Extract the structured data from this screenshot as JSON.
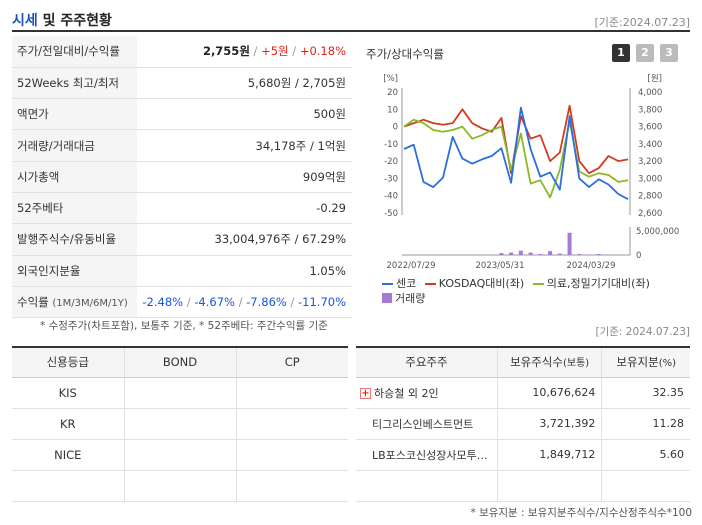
{
  "header": {
    "title_main": "시세",
    "title_rest": " 및 주주현황",
    "date": "[기준:2024.07.23]"
  },
  "quote": {
    "price_label": "주가/전일대비/수익률",
    "price": "2,755원",
    "change": "+5원",
    "change_pct": "+0.18%",
    "w52_label": "52Weeks 최고/최저",
    "w52_high": "5,680원",
    "w52_low": "2,705원",
    "par_label": "액면가",
    "par": "500원",
    "volume_label": "거래량/거래대금",
    "volume": "34,178주",
    "amount": "1억원",
    "mcap_label": "시가총액",
    "mcap": "909억원",
    "beta_label": "52주베타",
    "beta": "-0.29",
    "shares_label": "발행주식수/유동비율",
    "shares": "33,004,976주",
    "float": "67.29%",
    "foreign_label": "외국인지분율",
    "foreign": "1.05%",
    "return_label": "수익률",
    "return_period": "(1M/3M/6M/1Y)",
    "returns": [
      "-2.48%",
      "-4.67%",
      "-7.86%",
      "-11.70%"
    ],
    "sep": " / "
  },
  "note_left": "* 수정주가(차트포함), 보통주 기준, * 52주베타: 주간수익률 기준",
  "note_right_date": "[기준: 2024.07.23]",
  "chart": {
    "title": "주가/상대수익률",
    "pages": [
      "1",
      "2",
      "3"
    ],
    "active_page": "1",
    "colors": {
      "price": "#2a6fdb",
      "kosdaq": "#d23b1e",
      "sector": "#8ab928",
      "volume": "#a77ad3",
      "active_btn": "#333333",
      "inactive_btn": "#bbbbbb"
    }
  },
  "chart_data": {
    "type": "line",
    "left_axis_unit": "[%]",
    "right_axis_unit": "[원]",
    "left_ticks": [
      "20",
      "10",
      "0",
      "-10",
      "-20",
      "-30",
      "-40",
      "-50"
    ],
    "right_ticks": [
      "4,000",
      "3,800",
      "3,600",
      "3,400",
      "3,200",
      "3,000",
      "2,800",
      "2,600"
    ],
    "volume_ticks": [
      "5,000,000",
      "0"
    ],
    "x_ticks": [
      "2022/07/29",
      "2023/05/31",
      "2024/03/29"
    ],
    "left_range": [
      -50,
      20
    ],
    "right_range": [
      2600,
      4000
    ],
    "series": [
      {
        "name": "센코",
        "axis": "right",
        "values": [
          3340,
          3390,
          2960,
          2900,
          3010,
          3480,
          3230,
          3170,
          3220,
          3260,
          3350,
          2950,
          3820,
          3340,
          3020,
          3070,
          2870,
          3720,
          3000,
          2900,
          2990,
          2930,
          2820,
          2760
        ]
      },
      {
        "name": "KOSDAQ대비(좌)",
        "axis": "left",
        "values": [
          0,
          2,
          4,
          2,
          1,
          2,
          10,
          2,
          -1,
          -3,
          5,
          -27,
          6,
          -7,
          -5,
          -20,
          -15,
          12,
          -20,
          -27,
          -24,
          -17,
          -20,
          -19
        ]
      },
      {
        "name": "의료,정밀기기대비(좌)",
        "axis": "left",
        "values": [
          0,
          4,
          2,
          -2,
          -3,
          -2,
          0,
          -7,
          -5,
          -2,
          0,
          -25,
          -4,
          -33,
          -31,
          -41,
          -25,
          3,
          -26,
          -29,
          -27,
          -28,
          -32,
          -31
        ]
      },
      {
        "name": "거래량",
        "axis": "volume",
        "values": [
          0,
          0,
          0,
          0,
          0,
          0,
          0,
          0,
          0,
          0,
          400000,
          500000,
          900000,
          500000,
          200000,
          800000,
          300000,
          4600000,
          200000,
          100000,
          200000,
          100000,
          0,
          0
        ]
      }
    ],
    "volume_range": [
      0,
      5800000
    ]
  },
  "credit": {
    "headers": [
      "신용등급",
      "BOND",
      "CP"
    ],
    "rows": [
      [
        "KIS",
        "",
        ""
      ],
      [
        "KR",
        "",
        ""
      ],
      [
        "NICE",
        "",
        ""
      ],
      [
        "",
        "",
        ""
      ]
    ]
  },
  "shareholders": {
    "h_name": "주요주주",
    "h_shares": "보유주식수",
    "h_shares_unit": "(보통)",
    "h_pct": "보유지분",
    "h_pct_unit": "(%)",
    "rows": [
      {
        "name": "하승철 외 2인",
        "shares": "10,676,624",
        "pct": "32.35"
      },
      {
        "name": "티그리스인베스트먼트",
        "shares": "3,721,392",
        "pct": "11.28"
      },
      {
        "name": "LB포스코신성장사모투…",
        "shares": "1,849,712",
        "pct": "5.60"
      },
      {
        "name": "",
        "shares": "",
        "pct": ""
      }
    ]
  },
  "note_bottom": "* 보유지분 : 보유지분주식수/지수산정주식수*100"
}
